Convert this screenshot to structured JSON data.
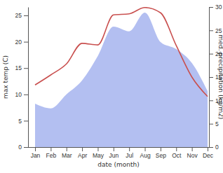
{
  "chart_data": {
    "type": "line",
    "x_label": "date (month)",
    "y_label": "max temp (C)",
    "y2_label": "med. precipitation (kg/m2)",
    "categories": [
      "Jan",
      "Feb",
      "Mar",
      "Apr",
      "May",
      "Jun",
      "Jul",
      "Aug",
      "Sep",
      "Oct",
      "Nov",
      "Dec"
    ],
    "series": [
      {
        "type": "area",
        "axis": "y2",
        "color": "#b3bff1",
        "values": [
          9.3,
          8.3,
          11.3,
          14.3,
          19.5,
          25.8,
          24.8,
          28.8,
          22.5,
          21,
          18,
          12
        ]
      },
      {
        "type": "line",
        "color": "#c9504f",
        "values": [
          11.8,
          13.7,
          15.8,
          19.7,
          19.4,
          25.1,
          25.3,
          26.5,
          25.5,
          19.3,
          13.3,
          9.6
        ]
      }
    ],
    "ylim": [
      0,
      26.6
    ],
    "yticks": [
      0,
      5,
      10,
      15,
      20,
      25
    ],
    "y2lim": [
      0,
      30
    ],
    "y2ticks": [
      0,
      5,
      10,
      15,
      20,
      25,
      30
    ]
  }
}
